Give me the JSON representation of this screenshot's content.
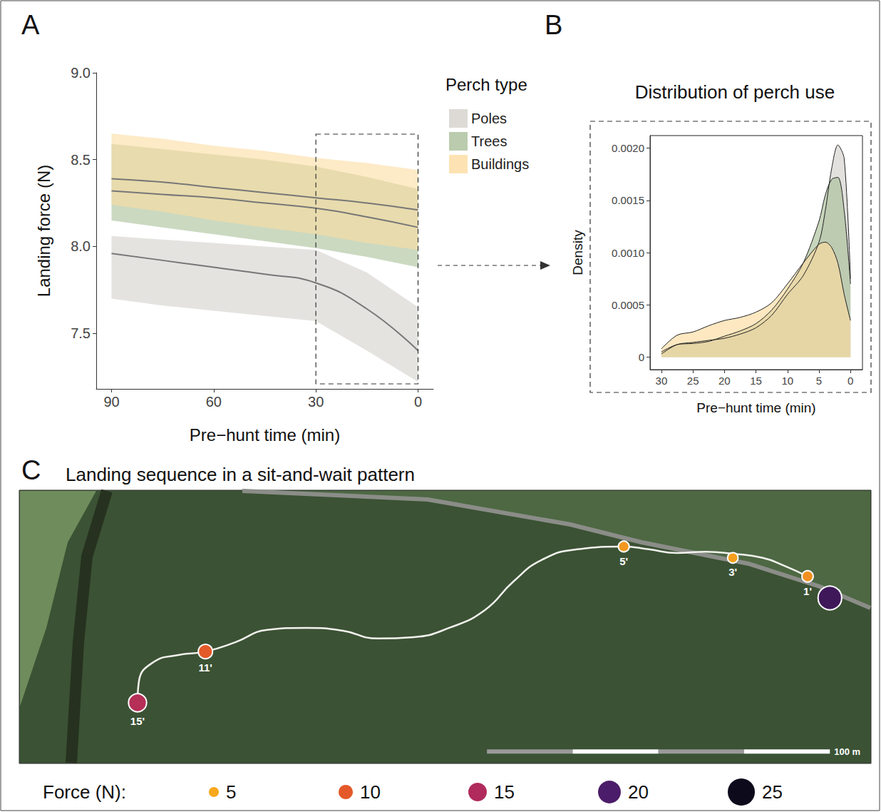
{
  "chart_data": [
    {
      "panel": "A",
      "type": "line",
      "x_label": "Pre−hunt time (min)",
      "y_label": "Landing force (N)",
      "legend_title": "Perch type",
      "legend": "right",
      "grid": false,
      "xlim": [
        94.5,
        -4.5
      ],
      "xticks": [
        90,
        60,
        30,
        0
      ],
      "ylim": [
        7.18,
        9
      ],
      "yticks": [
        7.5,
        {
          "value": 8,
          "label": "8.0"
        },
        8.5,
        {
          "value": 9,
          "label": "9.0"
        }
      ],
      "x": [
        90,
        75,
        60,
        45,
        30,
        15,
        0
      ],
      "series": [
        {
          "name": "Poles",
          "color": "#d4d1cc",
          "values": [
            7.96,
            7.92,
            7.88,
            7.84,
            7.79,
            7.64,
            7.4
          ],
          "lower": [
            7.7,
            7.66,
            7.63,
            7.6,
            7.57,
            7.4,
            7.22
          ],
          "upper": [
            8.06,
            8.04,
            8.02,
            8.0,
            7.98,
            7.85,
            7.65
          ]
        },
        {
          "name": "Trees",
          "color": "#a9bf98",
          "values": [
            8.32,
            8.3,
            8.28,
            8.25,
            8.22,
            8.17,
            8.11
          ],
          "lower": [
            8.15,
            8.11,
            8.07,
            8.03,
            7.99,
            7.94,
            7.88
          ],
          "upper": [
            8.59,
            8.56,
            8.53,
            8.5,
            8.46,
            8.4,
            8.33
          ]
        },
        {
          "name": "Buildings",
          "color": "#fcdca0",
          "values": [
            8.39,
            8.37,
            8.34,
            8.31,
            8.28,
            8.25,
            8.21
          ],
          "lower": [
            8.24,
            8.2,
            8.15,
            8.11,
            8.07,
            8.02,
            7.98
          ],
          "upper": [
            8.65,
            8.62,
            8.58,
            8.55,
            8.51,
            8.48,
            8.44
          ]
        }
      ]
    },
    {
      "panel": "B",
      "type": "area",
      "title": "Distribution of perch use",
      "x_label": "Pre−hunt time (min)",
      "y_label": "Density",
      "grid": false,
      "xlim": [
        31.8,
        -1.9
      ],
      "xticks": [
        30,
        25,
        20,
        15,
        10,
        5,
        0
      ],
      "ylim": [
        -0.00012,
        0.00212
      ],
      "yticks": [
        0,
        0.0005,
        {
          "value": 0.001,
          "label": "0.0010"
        },
        0.0015,
        {
          "value": 0.002,
          "label": "0.0020"
        }
      ],
      "x": [
        30,
        27.5,
        25,
        22.5,
        20,
        17.5,
        15,
        12.5,
        10,
        7.5,
        5,
        4,
        3,
        2,
        1,
        0
      ],
      "series": [
        {
          "color": "#d4d1cc",
          "values": [
            3e-05,
            0.00012,
            0.00014,
            0.00016,
            0.00018,
            0.00022,
            0.00028,
            0.0004,
            0.0006,
            0.00078,
            0.0011,
            0.0014,
            0.0018,
            0.00203,
            0.0019,
            0.00075
          ]
        },
        {
          "color": "#a9bf98",
          "values": [
            5e-05,
            0.00012,
            0.00013,
            0.00015,
            0.0002,
            0.00025,
            0.00032,
            0.00045,
            0.00065,
            0.0009,
            0.0013,
            0.00155,
            0.0017,
            0.00172,
            0.0014,
            0.0007
          ]
        },
        {
          "color": "#fcdca0",
          "values": [
            8e-05,
            0.00021,
            0.00024,
            0.0003,
            0.00035,
            0.00038,
            0.00043,
            0.00052,
            0.0007,
            0.0009,
            0.00108,
            0.0011,
            0.00105,
            0.0009,
            0.0006,
            0.00035
          ]
        }
      ]
    },
    {
      "panel": "C",
      "type": "scatter",
      "title": "Landing sequence in a sit-and-wait pattern",
      "xlim": [
        0,
        248.4
      ],
      "ylim": [
        0,
        79.6
      ],
      "tick_labels": false,
      "x": [
        34.5,
        54.3,
        176.3,
        208.1,
        229.9,
        236.4
      ],
      "y": [
        17.7,
        32.6,
        63.2,
        59.9,
        54.5,
        48.2
      ],
      "force": [
        14.5,
        10,
        6,
        5.5,
        6.5,
        21
      ],
      "labels": [
        "15'",
        "11'",
        "5'",
        "3'",
        "1'",
        null
      ],
      "track": {
        "x": [
          34.5,
          34.9,
          39.1,
          46.4,
          54.3,
          63.0,
          72.3,
          83.8,
          94.2,
          104.6,
          115.0,
          125.4,
          135.8,
          144.1,
          152.4,
          162.8,
          176.3,
          183.6,
          191.9,
          200.2,
          208.1,
          216.8,
          223.1,
          229.9
        ],
        "y": [
          17.7,
          23.9,
          29.5,
          31.6,
          32.6,
          35.3,
          38.9,
          39.5,
          38.7,
          36.4,
          36.8,
          39.5,
          44.7,
          53.0,
          59.3,
          62.4,
          63.2,
          62.4,
          61.3,
          61.7,
          61.1,
          59.9,
          57.6,
          54.5
        ]
      },
      "legend": "bottom",
      "legend_title": "Force (N):",
      "legend_values": [
        5,
        10,
        15,
        20,
        25
      ],
      "scale_bar": {
        "length": 100,
        "label": "100 m"
      }
    }
  ]
}
